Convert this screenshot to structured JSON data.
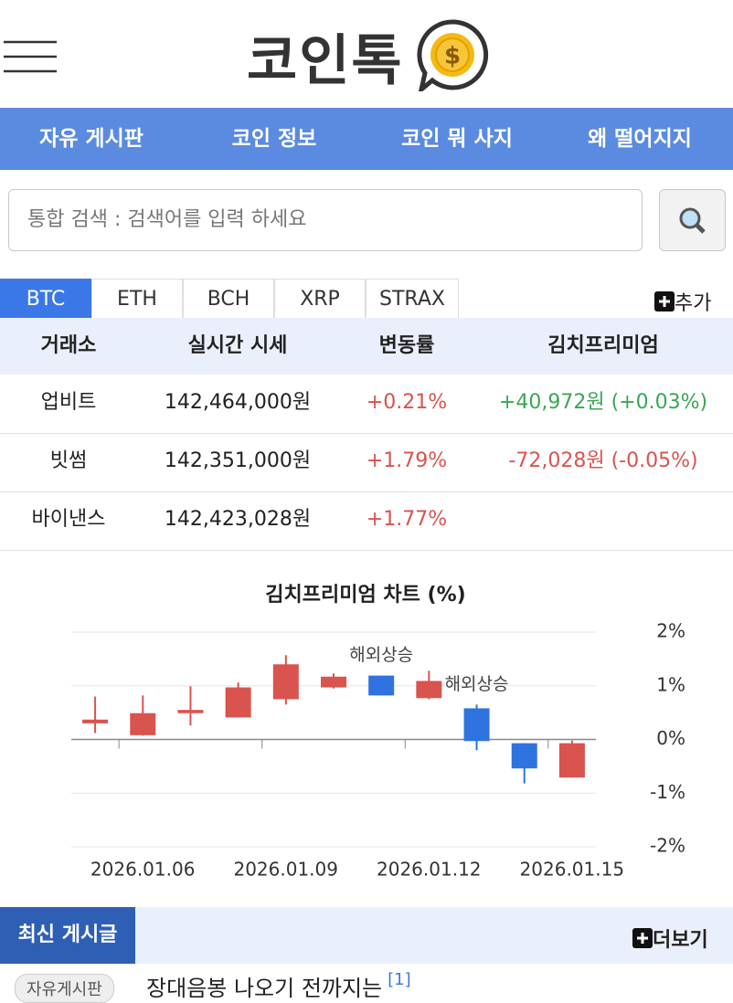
{
  "header": {
    "logo": "코인톡"
  },
  "nav": [
    "자유 게시판",
    "코인 정보",
    "코인 뭐 사지",
    "왜 떨어지지"
  ],
  "search": {
    "placeholder": "통합 검색 : 검색어를 입력 하세요"
  },
  "tabs": [
    "BTC",
    "ETH",
    "BCH",
    "XRP",
    "STRAX"
  ],
  "add": "추가",
  "table": {
    "header": [
      "거래소",
      "실시간 시세",
      "변동률",
      "김치프리미엄"
    ],
    "rows": [
      [
        "업비트",
        "142,464,000원",
        "+0.21%",
        "+40,972원 (+0.03%)"
      ],
      [
        "빗썸",
        "142,351,000원",
        "+1.79%",
        "-72,028원 (-0.05%)"
      ],
      [
        "바이낸스",
        "142,423,028원",
        "+1.77%"
      ]
    ]
  },
  "chart_data": {
    "type": "candlestick",
    "title": "김치프리미엄 차트 (%)",
    "categories": [
      null,
      "2026.01.06",
      null,
      null,
      "2026.01.09",
      null,
      null,
      "2026.01.12",
      null,
      null,
      "2026.01.15"
    ],
    "open": [
      0.3,
      0.08,
      0.49,
      0.41,
      0.75,
      0.97,
      1.19,
      0.77,
      0.58,
      -0.07,
      -0.71
    ],
    "high": [
      0.8,
      0.82,
      0.99,
      1.06,
      1.57,
      1.23,
      1.19,
      1.28,
      0.65,
      -0.07,
      -0.02
    ],
    "low": [
      0.12,
      0.07,
      0.26,
      0.41,
      0.65,
      0.95,
      0.82,
      0.75,
      -0.2,
      -0.82,
      -0.71
    ],
    "close": [
      0.37,
      0.49,
      0.55,
      0.97,
      1.4,
      1.17,
      0.82,
      1.09,
      -0.03,
      -0.54,
      -0.07
    ],
    "annotations": [
      null,
      null,
      null,
      null,
      null,
      null,
      "해외상승",
      null,
      "해외상승",
      null,
      null
    ],
    "up_color": "#d9534f",
    "down_color": "#2f73e0",
    "ylim": [
      -2,
      2
    ],
    "yticks": [
      {
        "value": 2,
        "label": "2%"
      },
      {
        "value": 1,
        "label": "1%"
      },
      {
        "value": 0,
        "label": "0%"
      },
      {
        "value": -1,
        "label": "-1%"
      },
      {
        "value": -2,
        "label": "-2%"
      }
    ],
    "grid": true
  },
  "posts": {
    "title": "최신 게시글",
    "more": "더보기",
    "items": [
      {
        "board": "자유게시판",
        "title": "장대음봉 나오기 전까지는",
        "comments": "[1]"
      }
    ]
  }
}
